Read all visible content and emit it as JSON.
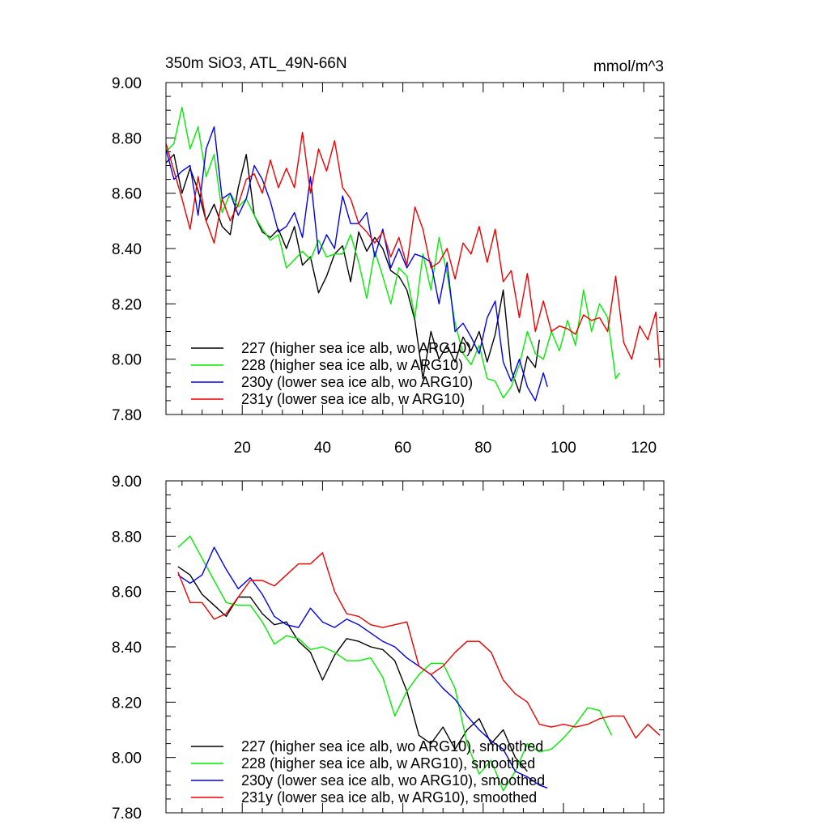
{
  "figure": {
    "title_left": "350m SiO3, ATL_49N-66N",
    "title_right": "mmol/m^3"
  },
  "chart_data": [
    {
      "type": "line",
      "title": "350m SiO3, ATL_49N-66N",
      "units": "mmol/m^3",
      "xlim": [
        1,
        125
      ],
      "ylim": [
        7.8,
        9.0
      ],
      "xticks": [
        20,
        40,
        60,
        80,
        100,
        120
      ],
      "xtick_labels": [
        "20",
        "40",
        "60",
        "80",
        "100",
        "120"
      ],
      "yticks": [
        7.8,
        8.0,
        8.2,
        8.4,
        8.6,
        8.8,
        9.0
      ],
      "ytick_labels": [
        "7.80",
        "8.00",
        "8.20",
        "8.40",
        "8.60",
        "8.80",
        "9.00"
      ],
      "legend_position": "bottom-left",
      "series": [
        {
          "name": "227 (higher sea ice alb, wo ARG10)",
          "color": "#000000",
          "x": [
            1,
            3,
            5,
            7,
            9,
            11,
            13,
            15,
            17,
            19,
            21,
            23,
            25,
            27,
            29,
            31,
            33,
            35,
            37,
            39,
            41,
            43,
            45,
            47,
            49,
            51,
            53,
            55,
            57,
            59,
            61,
            63,
            65,
            67,
            69,
            71,
            73,
            75,
            77,
            79,
            81,
            83,
            85,
            87,
            89,
            91,
            93,
            94
          ],
          "y": [
            8.71,
            8.74,
            8.6,
            8.69,
            8.61,
            8.5,
            8.56,
            8.48,
            8.45,
            8.62,
            8.74,
            8.52,
            8.46,
            8.44,
            8.47,
            8.4,
            8.48,
            8.34,
            8.37,
            8.24,
            8.3,
            8.38,
            8.41,
            8.28,
            8.46,
            8.39,
            8.44,
            8.4,
            8.32,
            8.3,
            8.25,
            8.14,
            7.93,
            8.1,
            8.0,
            8.05,
            7.99,
            8.08,
            8.03,
            8.1,
            7.99,
            8.09,
            8.25,
            7.96,
            7.88,
            8.01,
            7.97,
            8.07
          ]
        },
        {
          "name": "228 (higher sea ice alb, w ARG10)",
          "color": "#00ee00",
          "x": [
            1,
            3,
            5,
            7,
            9,
            11,
            13,
            15,
            17,
            19,
            21,
            23,
            25,
            27,
            29,
            31,
            33,
            35,
            37,
            39,
            41,
            43,
            45,
            47,
            49,
            51,
            53,
            55,
            57,
            59,
            61,
            63,
            65,
            67,
            69,
            71,
            73,
            75,
            77,
            79,
            81,
            83,
            85,
            87,
            89,
            91,
            93,
            95,
            97,
            99,
            101,
            103,
            105,
            107,
            109,
            111,
            113,
            114
          ],
          "y": [
            8.75,
            8.78,
            8.91,
            8.76,
            8.84,
            8.66,
            8.74,
            8.53,
            8.6,
            8.55,
            8.58,
            8.52,
            8.47,
            8.43,
            8.45,
            8.33,
            8.36,
            8.39,
            8.36,
            8.43,
            8.37,
            8.38,
            8.38,
            8.45,
            8.35,
            8.22,
            8.39,
            8.3,
            8.2,
            8.33,
            8.3,
            8.15,
            8.38,
            8.25,
            8.44,
            8.31,
            8.13,
            8.02,
            7.98,
            8.05,
            7.93,
            7.92,
            7.86,
            7.9,
            7.98,
            8.1,
            8.02,
            8.0,
            8.1,
            8.03,
            8.14,
            8.05,
            8.25,
            8.1,
            8.2,
            8.15,
            7.93,
            7.95
          ]
        },
        {
          "name": "230y (lower sea ice alb, wo ARG10)",
          "color": "#0000ee",
          "x": [
            1,
            3,
            5,
            7,
            9,
            11,
            13,
            15,
            17,
            19,
            21,
            23,
            25,
            27,
            29,
            31,
            33,
            35,
            37,
            39,
            41,
            43,
            45,
            47,
            49,
            51,
            53,
            55,
            57,
            59,
            61,
            63,
            65,
            67,
            69,
            71,
            73,
            75,
            77,
            79,
            81,
            83,
            85,
            87,
            89,
            91,
            93,
            95,
            96
          ],
          "y": [
            8.76,
            8.65,
            8.68,
            8.7,
            8.52,
            8.76,
            8.84,
            8.58,
            8.6,
            8.52,
            8.58,
            8.7,
            8.65,
            8.57,
            8.46,
            8.48,
            8.53,
            8.44,
            8.66,
            8.38,
            8.45,
            8.4,
            8.59,
            8.49,
            8.49,
            8.53,
            8.37,
            8.47,
            8.33,
            8.4,
            8.33,
            8.38,
            8.37,
            8.35,
            8.2,
            8.35,
            8.1,
            8.13,
            8.08,
            8.02,
            8.15,
            8.21,
            7.99,
            7.92,
            8.0,
            7.9,
            7.85,
            7.95,
            7.9
          ]
        },
        {
          "name": "231y (lower sea ice alb, w ARG10)",
          "color": "#ee0000",
          "x": [
            1,
            3,
            5,
            7,
            9,
            11,
            13,
            15,
            17,
            19,
            21,
            23,
            25,
            27,
            29,
            31,
            33,
            35,
            37,
            39,
            41,
            43,
            45,
            47,
            49,
            51,
            53,
            55,
            57,
            59,
            61,
            63,
            65,
            67,
            69,
            71,
            73,
            75,
            77,
            79,
            81,
            83,
            85,
            87,
            89,
            91,
            93,
            95,
            97,
            99,
            101,
            103,
            105,
            107,
            109,
            111,
            113,
            115,
            117,
            119,
            121,
            123,
            124
          ],
          "y": [
            8.78,
            8.68,
            8.58,
            8.47,
            8.66,
            8.5,
            8.42,
            8.58,
            8.5,
            8.56,
            8.65,
            8.67,
            8.6,
            8.72,
            8.62,
            8.69,
            8.62,
            8.82,
            8.6,
            8.76,
            8.68,
            8.79,
            8.62,
            8.58,
            8.49,
            8.46,
            8.42,
            8.46,
            8.37,
            8.44,
            8.34,
            8.55,
            8.47,
            8.33,
            8.35,
            8.4,
            8.29,
            8.42,
            8.38,
            8.48,
            8.35,
            8.47,
            8.28,
            8.32,
            8.15,
            8.31,
            8.1,
            8.21,
            8.1,
            8.12,
            8.11,
            8.09,
            8.16,
            8.14,
            8.15,
            8.1,
            8.3,
            8.06,
            8.0,
            8.12,
            8.07,
            8.17,
            7.97
          ]
        }
      ]
    },
    {
      "type": "line",
      "xlim": [
        1,
        125
      ],
      "ylim": [
        7.8,
        9.0
      ],
      "xticks": [
        20,
        40,
        60,
        80,
        100,
        120
      ],
      "yticks": [
        7.8,
        8.0,
        8.2,
        8.4,
        8.6,
        8.8,
        9.0
      ],
      "ytick_labels": [
        "7.80",
        "8.00",
        "8.20",
        "8.40",
        "8.60",
        "8.80",
        "9.00"
      ],
      "legend_position": "bottom-left",
      "series": [
        {
          "name": "227 (higher sea ice alb, wo ARG10), smoothed",
          "color": "#000000",
          "x": [
            4,
            7,
            10,
            13,
            16,
            19,
            22,
            25,
            28,
            31,
            34,
            37,
            40,
            43,
            46,
            49,
            52,
            55,
            58,
            61,
            64,
            67,
            70,
            73,
            76,
            79,
            82,
            85,
            88,
            91
          ],
          "y": [
            8.69,
            8.66,
            8.59,
            8.55,
            8.51,
            8.58,
            8.58,
            8.52,
            8.48,
            8.49,
            8.42,
            8.38,
            8.28,
            8.37,
            8.43,
            8.42,
            8.4,
            8.39,
            8.35,
            8.24,
            8.08,
            8.05,
            8.11,
            8.03,
            8.1,
            8.14,
            8.05,
            8.1,
            8.0,
            7.95
          ]
        },
        {
          "name": "228 (higher sea ice alb, w ARG10), smoothed",
          "color": "#00ee00",
          "x": [
            4,
            7,
            10,
            13,
            16,
            19,
            22,
            25,
            28,
            31,
            34,
            37,
            40,
            43,
            46,
            49,
            52,
            55,
            58,
            61,
            64,
            67,
            70,
            73,
            76,
            79,
            82,
            85,
            88,
            91,
            94,
            97,
            100,
            103,
            106,
            109,
            112
          ],
          "y": [
            8.76,
            8.8,
            8.72,
            8.64,
            8.56,
            8.55,
            8.55,
            8.49,
            8.41,
            8.44,
            8.43,
            8.39,
            8.4,
            8.38,
            8.35,
            8.35,
            8.36,
            8.29,
            8.15,
            8.24,
            8.3,
            8.34,
            8.34,
            8.25,
            8.05,
            7.94,
            7.99,
            7.88,
            7.95,
            8.05,
            8.02,
            8.03,
            8.07,
            8.12,
            8.18,
            8.17,
            8.08
          ]
        },
        {
          "name": "230y (lower sea ice alb, wo ARG10), smoothed",
          "color": "#0000ee",
          "x": [
            4,
            7,
            10,
            13,
            16,
            19,
            22,
            25,
            28,
            31,
            34,
            37,
            40,
            43,
            46,
            49,
            52,
            55,
            58,
            61,
            64,
            67,
            70,
            73,
            76,
            79,
            82,
            85,
            88,
            91,
            94,
            96
          ],
          "y": [
            8.66,
            8.63,
            8.66,
            8.76,
            8.68,
            8.61,
            8.65,
            8.59,
            8.51,
            8.48,
            8.47,
            8.54,
            8.49,
            8.47,
            8.5,
            8.48,
            8.45,
            8.42,
            8.4,
            8.36,
            8.33,
            8.3,
            8.25,
            8.21,
            8.15,
            8.1,
            8.06,
            8.03,
            7.95,
            7.93,
            7.9,
            7.89
          ]
        },
        {
          "name": "231y (lower sea ice alb, w ARG10), smoothed",
          "color": "#ee0000",
          "x": [
            4,
            7,
            10,
            13,
            16,
            19,
            22,
            25,
            28,
            31,
            34,
            37,
            40,
            43,
            46,
            49,
            52,
            55,
            58,
            61,
            64,
            67,
            70,
            73,
            76,
            79,
            82,
            85,
            88,
            91,
            94,
            97,
            100,
            103,
            106,
            109,
            112,
            115,
            118,
            121,
            124
          ],
          "y": [
            8.67,
            8.56,
            8.56,
            8.5,
            8.52,
            8.58,
            8.64,
            8.64,
            8.62,
            8.66,
            8.7,
            8.7,
            8.74,
            8.6,
            8.52,
            8.51,
            8.48,
            8.47,
            8.48,
            8.49,
            8.33,
            8.3,
            8.33,
            8.38,
            8.42,
            8.42,
            8.38,
            8.28,
            8.23,
            8.2,
            8.12,
            8.11,
            8.12,
            8.11,
            8.12,
            8.14,
            8.15,
            8.15,
            8.07,
            8.12,
            8.08
          ]
        }
      ]
    }
  ]
}
